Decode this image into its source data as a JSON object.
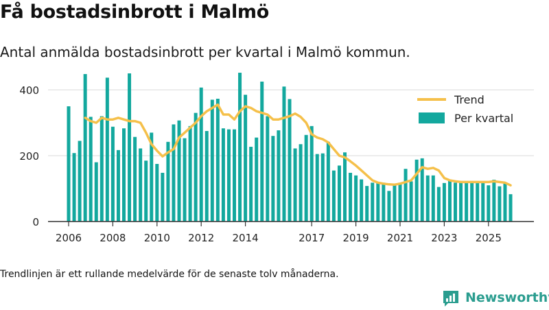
{
  "title": "Få bostadsinbrott i Malmö",
  "subtitle": "Antal anmälda bostadsinbrott per kvartal i Malmö kommun.",
  "footnote": "Trendlinjen är ett rullande medelvärde för de senaste tolv månaderna.",
  "brand": "Newsworthy",
  "colors": {
    "bars": "#13a89e",
    "trend": "#f5c04a",
    "brand": "#2a9d8f"
  },
  "chart_data": {
    "type": "bar",
    "x_start": "2006 Q1",
    "ylim": [
      0,
      500
    ],
    "yticks": [
      0,
      200,
      400
    ],
    "xticks": [
      "2006",
      "2008",
      "2010",
      "2012",
      "2014",
      "2017",
      "2019",
      "2021",
      "2023",
      "2025"
    ],
    "grid": true,
    "legend_position": "top-right",
    "series": [
      {
        "name": "Per kvartal",
        "type": "bar",
        "values": [
          350,
          208,
          245,
          448,
          318,
          180,
          320,
          437,
          288,
          217,
          283,
          450,
          257,
          222,
          185,
          270,
          175,
          148,
          242,
          295,
          307,
          253,
          290,
          330,
          407,
          275,
          370,
          373,
          283,
          280,
          280,
          452,
          385,
          227,
          255,
          425,
          320,
          260,
          277,
          410,
          372,
          222,
          235,
          263,
          290,
          205,
          207,
          242,
          155,
          170,
          210,
          148,
          140,
          128,
          108,
          118,
          117,
          118,
          93,
          110,
          118,
          160,
          122,
          188,
          192,
          140,
          140,
          105,
          117,
          125,
          118,
          118,
          120,
          120,
          118,
          118,
          110,
          127,
          107,
          117,
          83
        ]
      },
      {
        "name": "Trend",
        "type": "line",
        "values": [
          null,
          null,
          null,
          315,
          305,
          300,
          315,
          310,
          310,
          315,
          310,
          305,
          305,
          300,
          270,
          235,
          215,
          198,
          210,
          220,
          255,
          270,
          285,
          300,
          320,
          335,
          345,
          355,
          325,
          325,
          310,
          335,
          350,
          345,
          335,
          330,
          325,
          310,
          310,
          315,
          320,
          328,
          318,
          300,
          265,
          255,
          250,
          240,
          220,
          200,
          195,
          183,
          170,
          155,
          140,
          125,
          118,
          115,
          113,
          112,
          115,
          120,
          125,
          145,
          165,
          160,
          163,
          155,
          132,
          125,
          122,
          120,
          120,
          120,
          120,
          120,
          120,
          122,
          120,
          118,
          110
        ]
      }
    ]
  }
}
